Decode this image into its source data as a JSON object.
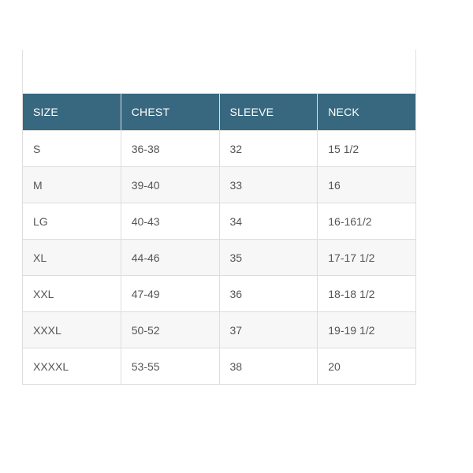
{
  "page": {
    "background": "#ffffff"
  },
  "size_chart": {
    "columns": [
      "SIZE",
      "CHEST",
      "SLEEVE",
      "NECK"
    ],
    "rows": [
      [
        "S",
        "36-38",
        "32",
        "15 1/2"
      ],
      [
        "M",
        "39-40",
        "33",
        "16"
      ],
      [
        "LG",
        "40-43",
        "34",
        "16-161/2"
      ],
      [
        "XL",
        "44-46",
        "35",
        "17-17 1/2"
      ],
      [
        "XXL",
        "47-49",
        "36",
        "18-18 1/2"
      ],
      [
        "XXXL",
        "50-52",
        "37",
        "19-19 1/2"
      ],
      [
        "XXXXL",
        "53-55",
        "38",
        "20"
      ]
    ],
    "colors": {
      "header_bg": "#38687f",
      "header_text": "#ffffff",
      "body_text": "#555555",
      "border": "#dddddd",
      "row_stripe": "#f7f7f7",
      "panel_border": "#e0e0e0"
    }
  }
}
